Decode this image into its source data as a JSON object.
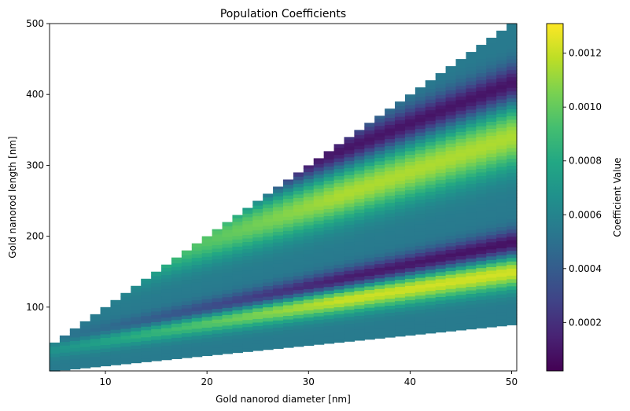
{
  "chart_data": {
    "type": "heatmap",
    "title": "Population Coefficients",
    "xlabel": "Gold nanorod diameter [nm]",
    "ylabel": "Gold nanorod length [nm]",
    "xlim": [
      4.5,
      50.5
    ],
    "ylim": [
      10,
      500
    ],
    "x_ticks": [
      10,
      20,
      30,
      40,
      50
    ],
    "y_ticks": [
      100,
      200,
      300,
      400,
      500
    ],
    "diameter_range": [
      5,
      50
    ],
    "diameter_step": 1,
    "length_step": 10,
    "lower_boundary": {
      "diameter": [
        5,
        50
      ],
      "length": [
        10,
        75
      ]
    },
    "upper_boundary": {
      "diameter": [
        5,
        50
      ],
      "length": [
        50,
        500
      ]
    },
    "value_bands": [
      {
        "center_at_d5": 45,
        "center_at_d50": 150,
        "width": 12,
        "amplitude": 0.00068,
        "description": "bright yellow ridge"
      },
      {
        "center_at_d5": 50,
        "center_at_d50": 190,
        "width": 10,
        "amplitude": -0.0005,
        "description": "dark purple valley"
      },
      {
        "center_at_d5": 120,
        "center_at_d50": 340,
        "width": 22,
        "amplitude": 0.0006,
        "description": "upper bright ridge"
      },
      {
        "center_at_d5": 160,
        "center_at_d50": 415,
        "width": 14,
        "amplitude": -0.00048,
        "description": "upper dark valley"
      }
    ],
    "base_value": 0.00055,
    "colorbar": {
      "label": "Coefficient Value",
      "range": [
        2e-05,
        0.00131
      ],
      "ticks": [
        "0.0002",
        "0.0004",
        "0.0006",
        "0.0008",
        "0.0010",
        "0.0012"
      ],
      "tick_values": [
        0.0002,
        0.0004,
        0.0006,
        0.0008,
        0.001,
        0.0012
      ],
      "colormap": "viridis"
    }
  }
}
